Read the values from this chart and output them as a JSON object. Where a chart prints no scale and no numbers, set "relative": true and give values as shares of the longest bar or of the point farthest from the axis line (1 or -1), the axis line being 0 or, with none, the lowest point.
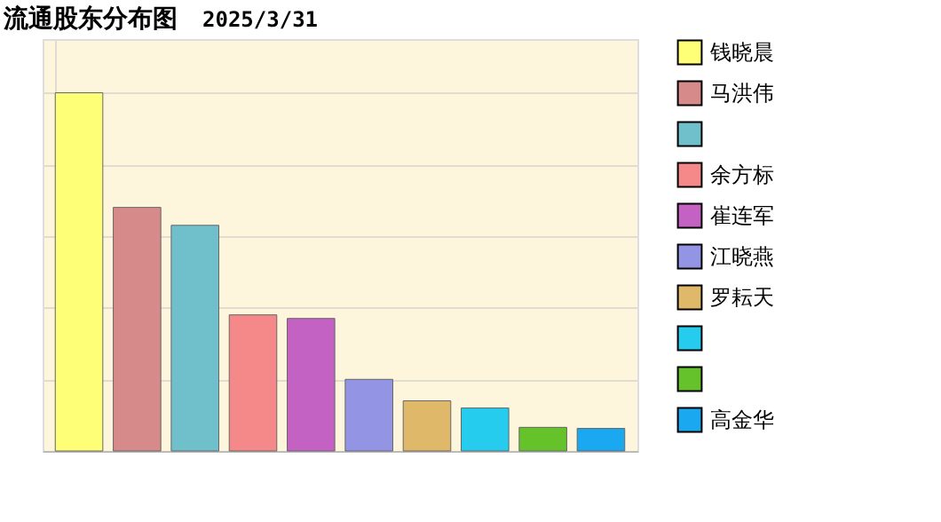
{
  "chart_data": {
    "type": "bar",
    "title": "流通股东分布图",
    "subtitle": "2025/3/31",
    "categories": [
      null
    ],
    "series": [
      {
        "name": "钱晓晨",
        "color": "#ffff77",
        "values": [
          1
        ]
      },
      {
        "name": "马洪伟",
        "color": "#d68a8a",
        "values": [
          0.68
        ]
      },
      {
        "color": "#70c0cc",
        "values": [
          0.63
        ]
      },
      {
        "name": "余方标",
        "color": "#f58888",
        "values": [
          0.38
        ]
      },
      {
        "name": "崔连军",
        "color": "#c462c4",
        "values": [
          0.37
        ]
      },
      {
        "name": "江晓燕",
        "color": "#9494e4",
        "values": [
          0.2
        ]
      },
      {
        "name": "罗耘天",
        "color": "#e0b86a",
        "values": [
          0.14
        ]
      },
      {
        "color": "#25ccee",
        "values": [
          0.12
        ]
      },
      {
        "color": "#66c22a",
        "values": [
          0.066
        ]
      },
      {
        "name": "高金华",
        "color": "#1aa8f0",
        "values": [
          0.063
        ]
      }
    ],
    "relative": true,
    "grid": true,
    "legend": "right"
  }
}
